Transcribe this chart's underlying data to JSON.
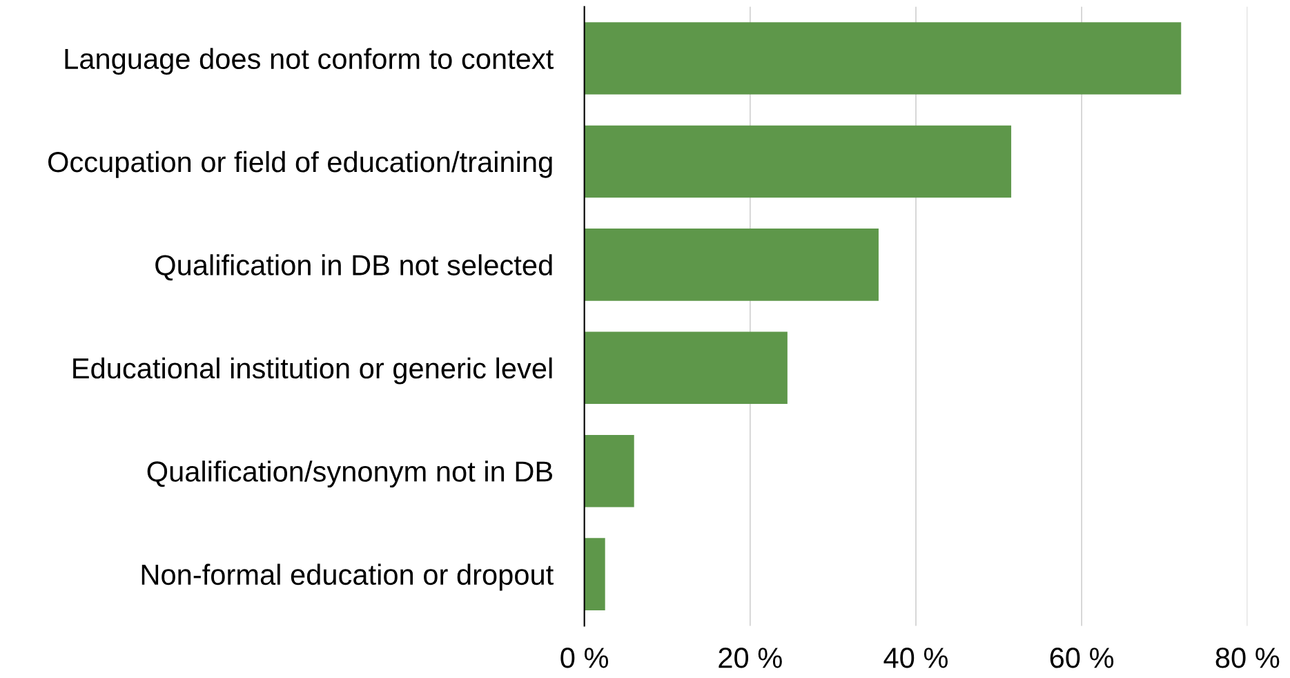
{
  "chart_data": {
    "type": "bar",
    "orientation": "horizontal",
    "categories": [
      "Language does not conform to context",
      "Occupation or field of education/training",
      "Qualification in DB not selected",
      "Educational institution or generic level",
      "Qualification/synonym not in DB",
      "Non-formal education or dropout"
    ],
    "values": [
      72,
      51.5,
      35.5,
      24.5,
      6,
      2.5
    ],
    "color": "#5e974a",
    "xlim": [
      0,
      80
    ],
    "xticks": [
      {
        "value": 0,
        "label": "0 %"
      },
      {
        "value": 20,
        "label": "20 %"
      },
      {
        "value": 40,
        "label": "40 %"
      },
      {
        "value": 60,
        "label": "60 %"
      },
      {
        "value": 80,
        "label": "80 %"
      }
    ],
    "grid": "x"
  }
}
